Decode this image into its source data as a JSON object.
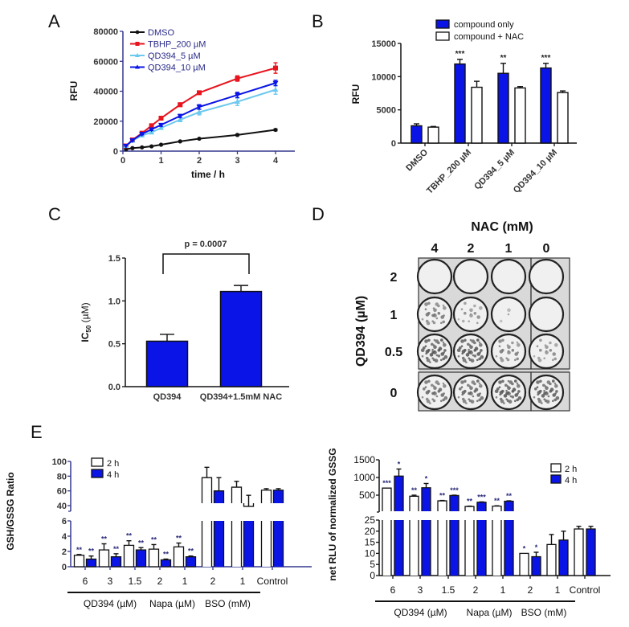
{
  "panel_labels": {
    "A": "A",
    "B": "B",
    "C": "C",
    "D": "D",
    "E": "E"
  },
  "colors": {
    "blue": "#0a14e6",
    "red": "#e8141e",
    "lightblue": "#6cc8ee",
    "black": "#111111",
    "axis_navy": "#34388e",
    "white": "#ffffff"
  },
  "chart_data": [
    {
      "id": "A",
      "type": "line",
      "title": "",
      "xlabel": "time / h",
      "ylabel": "RFU",
      "xlim": [
        0,
        4.5
      ],
      "ylim": [
        0,
        80000
      ],
      "xticks": [
        0,
        1,
        2,
        3,
        4
      ],
      "yticks": [
        0,
        20000,
        40000,
        60000,
        80000
      ],
      "legend_position": "top-left",
      "x": [
        0.08,
        0.25,
        0.5,
        0.75,
        1,
        1.5,
        2,
        3,
        4
      ],
      "series": [
        {
          "name": "DMSO",
          "color": "#111111",
          "marker": "circle",
          "values": [
            1200,
            2000,
            2500,
            3200,
            4300,
            6500,
            8300,
            10800,
            14200
          ],
          "errors": [
            200,
            200,
            200,
            300,
            300,
            400,
            400,
            500,
            600
          ]
        },
        {
          "name": "TBHP_200 µM",
          "color": "#e8141e",
          "marker": "square",
          "values": [
            3500,
            7500,
            12000,
            17000,
            22000,
            31000,
            39000,
            48500,
            55500
          ],
          "errors": [
            400,
            500,
            600,
            800,
            900,
            1200,
            900,
            1800,
            3500
          ]
        },
        {
          "name": "QD394_5 µM",
          "color": "#6cc8ee",
          "marker": "triangle",
          "values": [
            3500,
            7000,
            10500,
            12500,
            15500,
            21000,
            26000,
            33000,
            41000
          ],
          "errors": [
            400,
            500,
            600,
            800,
            900,
            1300,
            1800,
            2500,
            3000
          ]
        },
        {
          "name": "QD394_10 µM",
          "color": "#0a14e6",
          "marker": "triangle-down",
          "values": [
            3500,
            7200,
            11500,
            14500,
            17500,
            23500,
            29500,
            37500,
            45500
          ],
          "errors": [
            400,
            500,
            600,
            700,
            900,
            1000,
            1500,
            1800,
            1800
          ]
        }
      ]
    },
    {
      "id": "B",
      "type": "bar",
      "title": "",
      "xlabel": "",
      "ylabel": "RFU",
      "ylim": [
        0,
        15000
      ],
      "yticks": [
        0,
        5000,
        10000,
        15000
      ],
      "legend_position": "top",
      "categories": [
        "DMSO",
        "TBHP_200 µM",
        "QD394_5 µM",
        "QD394_10 µM"
      ],
      "series": [
        {
          "name": "compound only",
          "color": "#0a14e6",
          "values": [
            2600,
            11900,
            10500,
            11300
          ],
          "errors": [
            300,
            700,
            1500,
            700
          ]
        },
        {
          "name": "compound + NAC",
          "color": "#ffffff",
          "values": [
            2400,
            8400,
            8300,
            7600
          ],
          "errors": [
            100,
            900,
            200,
            250
          ]
        }
      ],
      "annotations": [
        "",
        "***",
        "**",
        "***"
      ]
    },
    {
      "id": "C",
      "type": "bar",
      "title": "",
      "xlabel": "",
      "ylabel": "IC",
      "ylabel_sub": "50",
      "ylabel_unit": " (µM)",
      "ylim": [
        0,
        1.5
      ],
      "yticks": [
        "0.0",
        "0.5",
        "1.0",
        "1.5"
      ],
      "categories": [
        "QD394",
        "QD394+1.5mM NAC"
      ],
      "values": [
        0.53,
        1.11
      ],
      "errors": [
        0.08,
        0.07
      ],
      "color": "#0a14e6",
      "annotation": "p = 0.0007"
    },
    {
      "id": "D",
      "type": "heatmap",
      "title": "NAC (mM)",
      "xlabel": "NAC (mM)",
      "ylabel": "QD394 (µM)",
      "columns": [
        "4",
        "2",
        "1",
        "0"
      ],
      "rows": [
        "2",
        "1",
        "0.5",
        "0"
      ],
      "staining_density": [
        [
          0.0,
          0.0,
          0.0,
          0.0
        ],
        [
          0.45,
          0.25,
          0.05,
          0.0
        ],
        [
          0.7,
          0.7,
          0.4,
          0.3
        ],
        [
          0.55,
          0.6,
          0.7,
          0.65
        ]
      ]
    },
    {
      "id": "E-left",
      "type": "bar",
      "title": "",
      "xlabel": "",
      "ylabel": "GSH/GSSG Ratio",
      "ylim_lower": [
        0,
        6
      ],
      "ylim_upper": [
        40,
        100
      ],
      "yticks_lower": [
        0,
        2,
        4,
        6
      ],
      "yticks_upper": [
        40,
        60,
        80,
        100
      ],
      "legend_position": "top-left",
      "categories": [
        "6",
        "3",
        "1.5",
        "2",
        "1",
        "2",
        "1",
        "Control"
      ],
      "groups": [
        {
          "label": "QD394 (µM)",
          "span": [
            0,
            2
          ]
        },
        {
          "label": "Napa (µM)",
          "span": [
            3,
            4
          ]
        },
        {
          "label": "BSO (mM)",
          "span": [
            5,
            6
          ]
        }
      ],
      "series": [
        {
          "name": "2 h",
          "color": "#ffffff",
          "values": [
            1.5,
            2.2,
            2.8,
            2.3,
            2.6,
            78,
            65,
            61
          ],
          "errors": [
            0.1,
            0.8,
            0.6,
            0.6,
            0.5,
            14,
            8,
            2
          ],
          "annotations": [
            "**",
            "**",
            "**",
            "**",
            "**",
            "",
            "",
            ""
          ]
        },
        {
          "name": "4 h",
          "color": "#0a14e6",
          "values": [
            1.0,
            1.3,
            2.2,
            0.9,
            1.3,
            60,
            39,
            61
          ],
          "errors": [
            0.4,
            0.4,
            0.3,
            0.1,
            0.1,
            18,
            15,
            2
          ],
          "annotations": [
            "**",
            "**",
            "**",
            "**",
            "**",
            "",
            "",
            ""
          ]
        }
      ]
    },
    {
      "id": "E-right",
      "type": "bar",
      "title": "",
      "xlabel": "",
      "ylabel": "net RLU of normalized GSSG",
      "ylim_lower": [
        0,
        25
      ],
      "ylim_upper": [
        0,
        1500
      ],
      "yticks_lower": [
        0,
        5,
        10,
        15,
        20,
        25
      ],
      "yticks_upper": [
        500,
        1000,
        1500
      ],
      "legend_position": "top-right",
      "categories": [
        "6",
        "3",
        "1.5",
        "2",
        "1",
        "2",
        "1",
        "Control"
      ],
      "groups": [
        {
          "label": "QD394 (µM)",
          "span": [
            0,
            2
          ]
        },
        {
          "label": "Napa (µM)",
          "span": [
            3,
            4
          ]
        },
        {
          "label": "BSO (mM)",
          "span": [
            5,
            6
          ]
        }
      ],
      "series": [
        {
          "name": "2 h",
          "color": "#ffffff",
          "values": [
            700,
            470,
            340,
            180,
            190,
            10,
            14,
            21
          ],
          "errors": [
            0,
            30,
            10,
            10,
            10,
            0,
            4.5,
            1.2
          ],
          "annotations": [
            "***",
            "**",
            "**",
            "**",
            "**",
            "*",
            "",
            ""
          ]
        },
        {
          "name": "4 h",
          "color": "#0a14e6",
          "values": [
            1040,
            710,
            490,
            300,
            330,
            8.5,
            16,
            21
          ],
          "errors": [
            200,
            120,
            10,
            10,
            10,
            2,
            4,
            1.2
          ],
          "annotations": [
            "*",
            "*",
            "***",
            "***",
            "**",
            "*",
            "",
            ""
          ]
        }
      ]
    }
  ]
}
